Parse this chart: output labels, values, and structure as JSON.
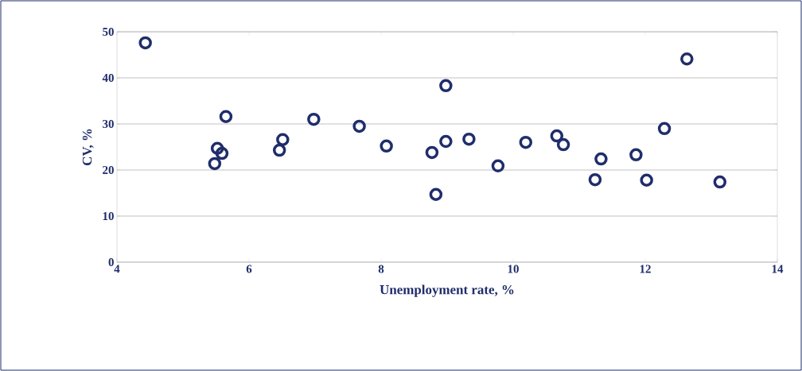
{
  "chart_data": {
    "type": "scatter",
    "xlabel": "Unemployment rate, %",
    "ylabel": "CV, %",
    "x": [
      4.43,
      5.48,
      5.52,
      5.59,
      5.65,
      6.46,
      6.51,
      6.98,
      7.67,
      8.08,
      8.77,
      8.83,
      8.98,
      8.98,
      9.33,
      9.77,
      10.19,
      10.66,
      10.76,
      11.24,
      11.33,
      11.86,
      12.02,
      12.29,
      12.63,
      13.13
    ],
    "values": [
      47.6,
      21.4,
      24.7,
      23.6,
      31.6,
      24.3,
      26.6,
      31.0,
      29.5,
      25.2,
      23.8,
      14.7,
      38.3,
      26.2,
      26.7,
      20.9,
      26.0,
      27.4,
      25.5,
      17.9,
      22.4,
      23.3,
      17.8,
      29.0,
      44.1,
      17.4
    ],
    "color": "#1f2d6b",
    "marker": "circle",
    "xlim": [
      4,
      14
    ],
    "xticks": [
      4,
      6,
      8,
      10,
      12,
      14
    ],
    "ylim": [
      0,
      50
    ],
    "yticks": [
      0,
      10,
      20,
      30,
      40,
      50
    ],
    "grid": "y"
  }
}
